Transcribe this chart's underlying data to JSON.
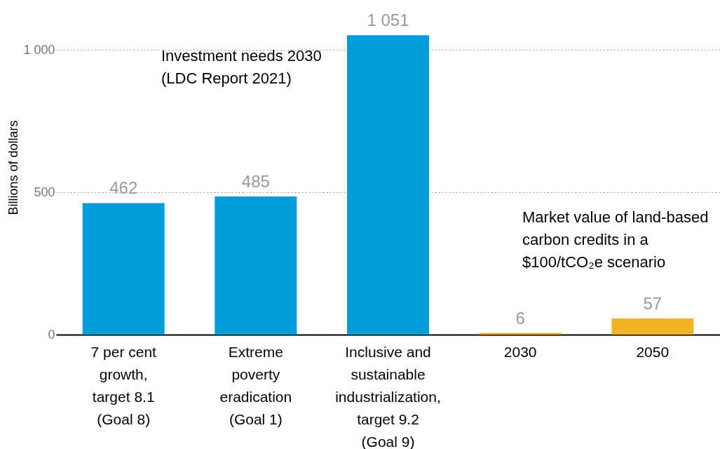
{
  "chart_data": {
    "type": "bar",
    "ylabel": "Billions of dollars",
    "categories": [
      "7 per cent growth, target 8.1 (Goal 8)",
      "Extreme poverty eradication (Goal 1)",
      "Inclusive and sustainable industrialization, target 9.2 (Goal 9)",
      "2030",
      "2050"
    ],
    "series": [
      {
        "color": "#009ddc",
        "values": [
          462,
          485,
          1051,
          null,
          null
        ],
        "value_labels": [
          "462",
          "485",
          "1 051",
          null,
          null
        ]
      },
      {
        "color": "#f0b323",
        "values": [
          null,
          null,
          null,
          6,
          57
        ],
        "value_labels": [
          null,
          null,
          null,
          "6",
          "57"
        ]
      }
    ],
    "ylim": [
      0,
      1175
    ],
    "yticks": [
      0,
      500,
      {
        "value": 1000,
        "label": "1 000"
      }
    ],
    "grid": "y",
    "legend": false,
    "annotations": [
      "Investment needs 2030 (LDC Report 2021)",
      "Market value of land-based carbon credits in a $100/tCO₂e scenario"
    ]
  }
}
